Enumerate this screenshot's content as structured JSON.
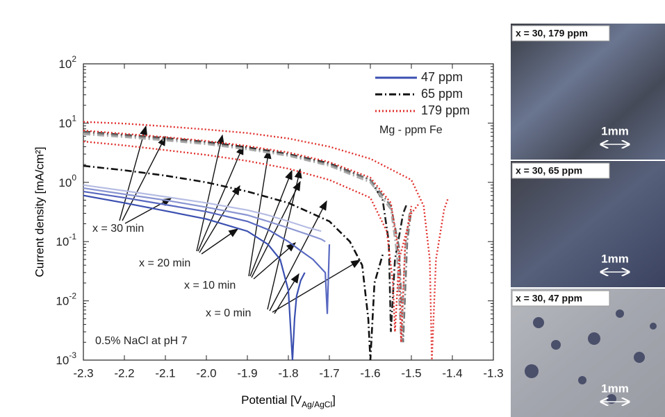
{
  "chart_data": {
    "type": "line",
    "ylog": true,
    "xlabel": "Potential [V",
    "xlabel_sub": "Ag/AgCl",
    "xlabel_end": "]",
    "ylabel": "Current density [mA/cm²]",
    "xlim": [
      -2.3,
      -1.3
    ],
    "xticks": [
      -2.3,
      -2.2,
      -2.1,
      {
        "value": -2,
        "label": "-2.0"
      },
      -1.9,
      -1.8,
      -1.7,
      -1.6,
      -1.5,
      -1.4,
      -1.3
    ],
    "ylim": [
      0.001,
      100
    ],
    "yticks": [
      {
        "value": 0.001,
        "label": "10",
        "exponent": "-3"
      },
      {
        "value": 0.01,
        "label": "10",
        "exponent": "-2"
      },
      {
        "value": 0.1,
        "label": "10",
        "exponent": "-1"
      },
      {
        "value": 1,
        "label": "10",
        "exponent": "0"
      },
      {
        "value": 10,
        "label": "10",
        "exponent": "1"
      },
      {
        "value": 100,
        "label": "10",
        "exponent": "2"
      }
    ],
    "legend_title": "Mg - ppm Fe",
    "legend": "upper right",
    "series": [
      {
        "name": "47 ppm",
        "color": "#3a4fb0",
        "line_style": "solid",
        "curves": [
          {
            "color": "#3a4fb0",
            "x": [
              -2.3,
              -2.2,
              -2.1,
              -2.0,
              -1.9,
              -1.85,
              -1.82,
              -1.8,
              -1.79,
              -1.785,
              -1.78,
              -1.77,
              -1.76
            ],
            "values": [
              0.6,
              0.45,
              0.33,
              0.24,
              0.15,
              0.09,
              0.05,
              0.015,
              0.001,
              0.005,
              0.012,
              0.022,
              0.03
            ]
          },
          {
            "color": "#5868c0",
            "x": [
              -2.3,
              -2.2,
              -2.1,
              -2.0,
              -1.9,
              -1.85,
              -1.8,
              -1.77,
              -1.74,
              -1.71,
              -1.705,
              -1.7
            ],
            "values": [
              0.7,
              0.55,
              0.42,
              0.32,
              0.22,
              0.16,
              0.1,
              0.07,
              0.05,
              0.03,
              0.006,
              0.09
            ]
          },
          {
            "color": "#8a95d2",
            "x": [
              -2.3,
              -2.2,
              -2.1,
              -2.0,
              -1.9,
              -1.85,
              -1.8,
              -1.75,
              -1.72,
              -1.71
            ],
            "values": [
              0.8,
              0.63,
              0.5,
              0.38,
              0.28,
              0.22,
              0.17,
              0.13,
              0.11,
              0.1
            ]
          },
          {
            "color": "#b5bce3",
            "x": [
              -2.3,
              -2.2,
              -2.1,
              -2.0,
              -1.9,
              -1.85,
              -1.8,
              -1.75,
              -1.72
            ],
            "values": [
              0.9,
              0.72,
              0.57,
              0.45,
              0.34,
              0.28,
              0.22,
              0.17,
              0.15
            ]
          }
        ]
      },
      {
        "name": "65 ppm",
        "color": "#111111",
        "line_style": "dash-dot",
        "curves": [
          {
            "color": "#111111",
            "x": [
              -2.3,
              -2.2,
              -2.1,
              -2.0,
              -1.9,
              -1.8,
              -1.7,
              -1.65,
              -1.62,
              -1.605,
              -1.6,
              -1.59,
              -1.57
            ],
            "values": [
              1.9,
              1.6,
              1.3,
              1.0,
              0.7,
              0.45,
              0.22,
              0.1,
              0.04,
              0.005,
              0.001,
              0.02,
              0.06
            ]
          },
          {
            "color": "#222222",
            "x": [
              -2.3,
              -2.2,
              -2.1,
              -2.0,
              -1.9,
              -1.8,
              -1.7,
              -1.6,
              -1.57,
              -1.555,
              -1.55,
              -1.54,
              -1.52,
              -1.51
            ],
            "values": [
              7.2,
              6.3,
              5.6,
              4.8,
              3.9,
              3.0,
              2.1,
              1.1,
              0.5,
              0.1,
              0.003,
              0.05,
              0.3,
              0.45
            ]
          },
          {
            "color": "#777777",
            "x": [
              -2.3,
              -2.2,
              -2.1,
              -2.0,
              -1.9,
              -1.8,
              -1.7,
              -1.6,
              -1.55,
              -1.53,
              -1.52,
              -1.51,
              -1.5
            ],
            "values": [
              7.0,
              6.1,
              5.4,
              4.6,
              3.7,
              2.9,
              2.0,
              1.1,
              0.4,
              0.08,
              0.002,
              0.1,
              0.35
            ]
          },
          {
            "color": "#aaaaaa",
            "x": [
              -2.3,
              -2.2,
              -2.1,
              -2.0,
              -1.9,
              -1.8,
              -1.7,
              -1.6,
              -1.55,
              -1.535,
              -1.525,
              -1.515,
              -1.505
            ],
            "values": [
              6.5,
              5.8,
              5.1,
              4.4,
              3.6,
              2.8,
              1.9,
              1.0,
              0.35,
              0.06,
              0.002,
              0.08,
              0.3
            ]
          }
        ]
      },
      {
        "name": "179 ppm",
        "color": "#e0302c",
        "line_style": "dotted",
        "curves": [
          {
            "color": "#e0302c",
            "x": [
              -2.3,
              -2.2,
              -2.1,
              -2.0,
              -1.9,
              -1.8,
              -1.7,
              -1.6,
              -1.56,
              -1.545,
              -1.54,
              -1.53,
              -1.5,
              -1.48
            ],
            "values": [
              4.9,
              4.2,
              3.5,
              2.9,
              2.3,
              1.7,
              1.1,
              0.55,
              0.15,
              0.02,
              0.003,
              0.05,
              0.3,
              0.45
            ]
          },
          {
            "color": "#e0302c",
            "x": [
              -2.3,
              -2.2,
              -2.1,
              -2.0,
              -1.9,
              -1.8,
              -1.7,
              -1.6,
              -1.55,
              -1.53,
              -1.525,
              -1.515,
              -1.5
            ],
            "values": [
              7.5,
              6.6,
              5.8,
              5.0,
              4.1,
              3.2,
              2.2,
              1.2,
              0.45,
              0.06,
              0.002,
              0.1,
              0.4
            ]
          },
          {
            "color": "#e0302c",
            "x": [
              -2.3,
              -2.2,
              -2.1,
              -2.0,
              -1.9,
              -1.8,
              -1.7,
              -1.6,
              -1.5,
              -1.47,
              -1.455,
              -1.45,
              -1.44,
              -1.42,
              -1.41
            ],
            "values": [
              10.5,
              9.8,
              8.8,
              7.8,
              6.8,
              5.5,
              4.0,
              2.5,
              1.1,
              0.4,
              0.05,
              0.001,
              0.05,
              0.35,
              0.55
            ]
          }
        ]
      }
    ],
    "annotations": [
      "x = 30 min",
      "x = 20 min",
      "x = 10 min",
      "x = 0 min",
      "0.5% NaCl at pH 7"
    ]
  },
  "images": [
    {
      "label": "x = 30, 179 ppm",
      "scale": "1mm"
    },
    {
      "label": "x = 30, 65 ppm",
      "scale": "1mm"
    },
    {
      "label": "x = 30, 47 ppm",
      "scale": "1mm"
    }
  ]
}
